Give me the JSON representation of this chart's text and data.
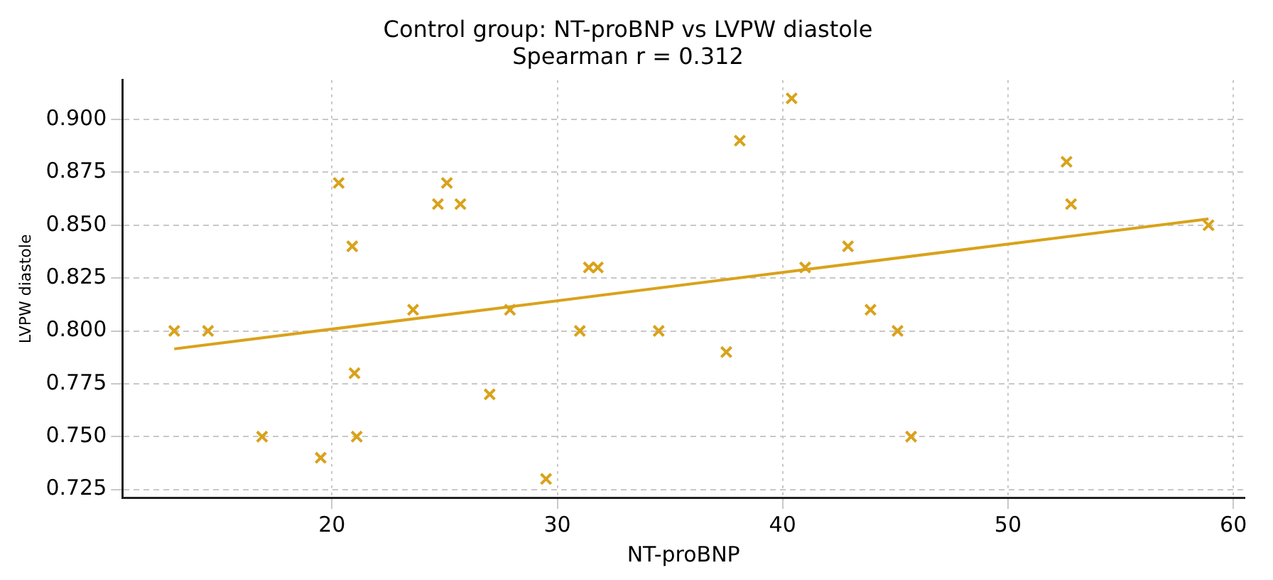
{
  "chart_data": {
    "type": "scatter",
    "title": "Control group: NT-proBNP vs LVPW diastole",
    "subtitle": "Spearman r = 0.312",
    "xlabel": "NT-proBNP",
    "ylabel": "LVPW diastole",
    "series": [
      {
        "type": "scatter",
        "color": "#d9a21b",
        "marker": "cross",
        "x": [
          13.0,
          14.5,
          16.9,
          19.5,
          20.3,
          20.9,
          21.0,
          21.1,
          23.6,
          24.7,
          25.1,
          25.7,
          27.0,
          27.9,
          29.5,
          31.0,
          31.4,
          31.8,
          34.5,
          37.5,
          38.1,
          40.4,
          41.0,
          42.9,
          43.9,
          45.1,
          45.7,
          52.6,
          52.8,
          58.9
        ],
        "values": [
          0.8,
          0.8,
          0.75,
          0.74,
          0.87,
          0.84,
          0.78,
          0.75,
          0.81,
          0.86,
          0.87,
          0.86,
          0.77,
          0.81,
          0.73,
          0.8,
          0.83,
          0.83,
          0.8,
          0.79,
          0.89,
          0.91,
          0.83,
          0.84,
          0.81,
          0.8,
          0.75,
          0.88,
          0.86,
          0.85
        ]
      },
      {
        "type": "line",
        "color": "#d9a21b",
        "line_style": "solid",
        "x": [
          13.0,
          58.9
        ],
        "values": [
          0.7915,
          0.853
        ]
      }
    ],
    "xlim": [
      10.7,
      60.5
    ],
    "xticks": [
      20,
      30,
      40,
      50,
      60
    ],
    "ylim": [
      0.7212,
      0.9186
    ],
    "yticks": [
      {
        "value": 0.725,
        "label": "0.725"
      },
      {
        "value": 0.75,
        "label": "0.750"
      },
      {
        "value": 0.775,
        "label": "0.775"
      },
      {
        "value": 0.8,
        "label": "0.800"
      },
      {
        "value": 0.825,
        "label": "0.825"
      },
      {
        "value": 0.85,
        "label": "0.850"
      },
      {
        "value": 0.875,
        "label": "0.875"
      },
      {
        "value": 0.9,
        "label": "0.900"
      }
    ],
    "grid": true
  }
}
